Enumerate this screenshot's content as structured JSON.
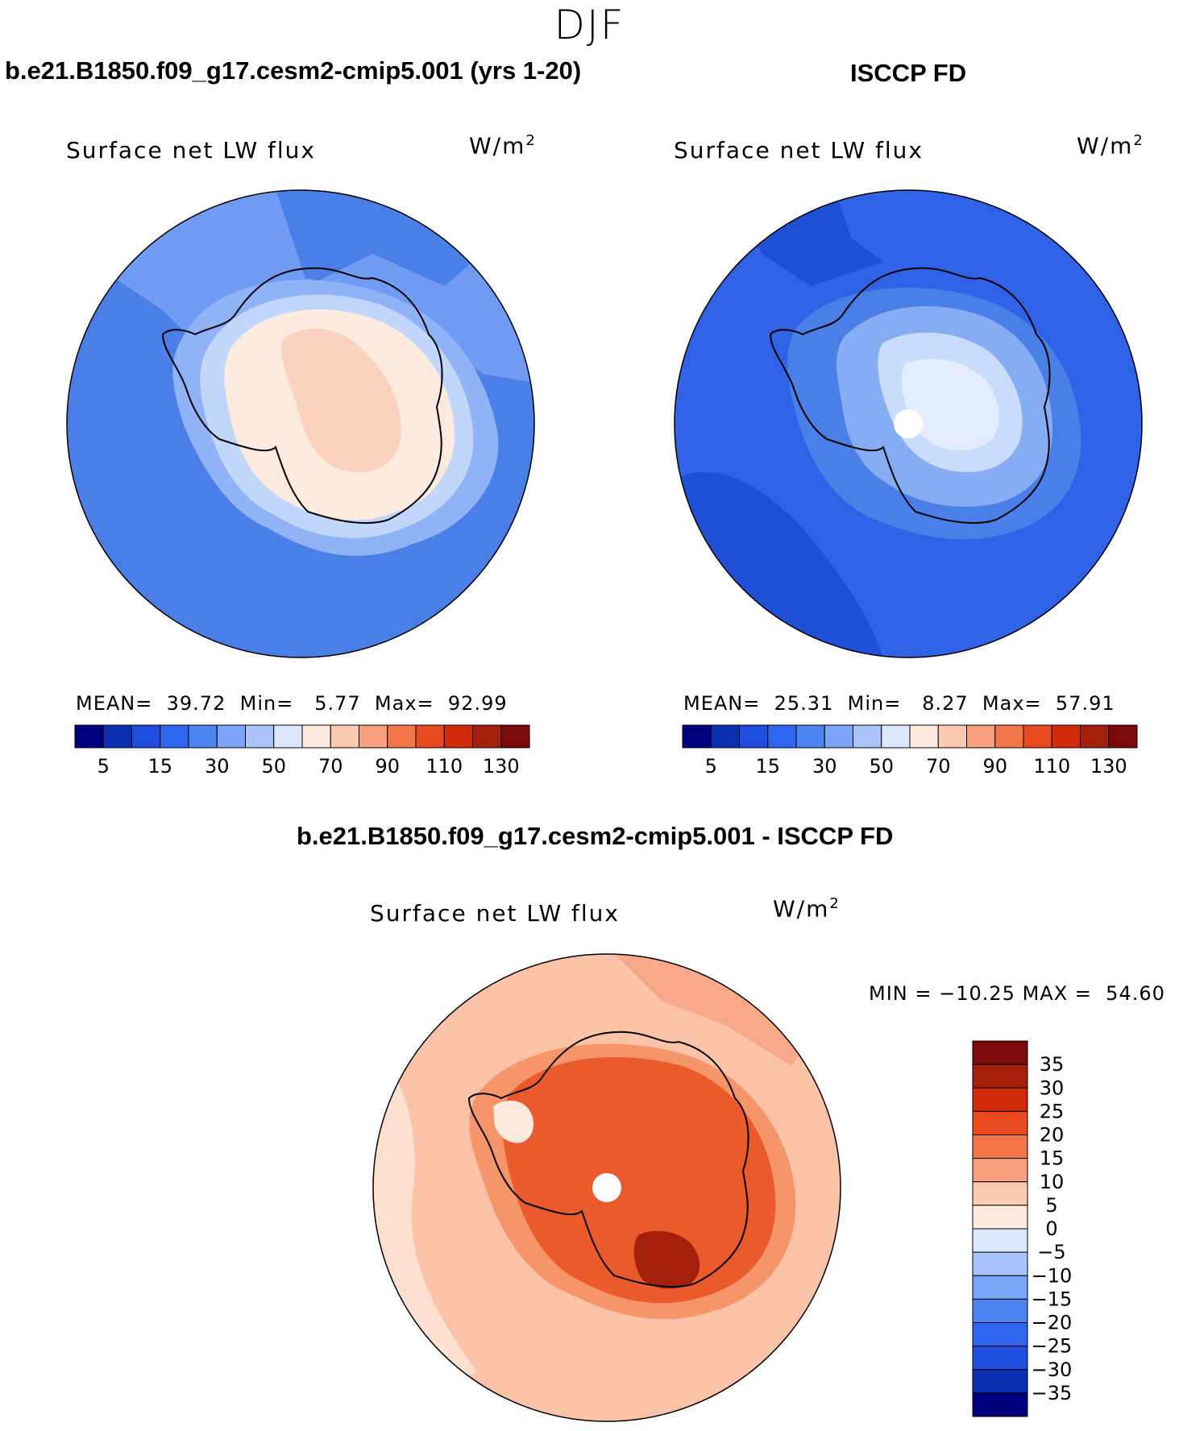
{
  "page": {
    "season_title": "DJF",
    "variable_title": "Surface net LW flux",
    "units_base": "W/m",
    "units_exp": "2"
  },
  "panels": [
    {
      "case_title": "b.e21.B1850.f09_g17.cesm2-cmip5.001 (yrs 1-20)",
      "stats": {
        "mean_label": "MEAN=",
        "mean": "39.72",
        "min_label": "Min=",
        "min": "5.77",
        "max_label": "Max=",
        "max": "92.99"
      }
    },
    {
      "case_title": "ISCCP FD",
      "stats": {
        "mean_label": "MEAN=",
        "mean": "25.31",
        "min_label": "Min=",
        "min": "8.27",
        "max_label": "Max=",
        "max": "57.91"
      }
    }
  ],
  "diff_panel": {
    "case_title": "b.e21.B1850.f09_g17.cesm2-cmip5.001 - ISCCP FD",
    "stats": {
      "min_label": "MIN =",
      "min": "−10.25",
      "max_label": "MAX =",
      "max": "54.60"
    }
  },
  "colors": {
    "abs_scale": [
      "#00007f",
      "#0a2fb0",
      "#1f4de0",
      "#2f66f0",
      "#4d84f2",
      "#7aa5f6",
      "#a9c4fa",
      "#dce9fc",
      "#fdeadf",
      "#fcc9b1",
      "#f9a17f",
      "#f47548",
      "#ea4a1f",
      "#d02a0a",
      "#a4200a",
      "#7c0a0a"
    ],
    "diff_scale": [
      "#00007f",
      "#0a2fb0",
      "#1f4de0",
      "#2f66f0",
      "#4d84f2",
      "#7aa5f6",
      "#a9c4fa",
      "#dce9fc",
      "#fdeadf",
      "#fcc9b1",
      "#f9a17f",
      "#f47548",
      "#ea4a1f",
      "#d02a0a",
      "#a4200a",
      "#7c0a0a"
    ],
    "ocean_model": "#4a7fe8",
    "ocean_obs": "#2f62e6",
    "ocean_diff": "#fac3a8"
  },
  "chart_data": [
    {
      "type": "contour-map",
      "title": "Surface net LW flux",
      "subtitle": "b.e21.B1850.f09_g17.cesm2-cmip5.001 (yrs 1-20)",
      "units": "W/m2",
      "levels": [
        5,
        10,
        15,
        20,
        30,
        40,
        50,
        60,
        70,
        80,
        90,
        100,
        110,
        120,
        130
      ],
      "colorbar_ticks": [
        "5",
        "15",
        "30",
        "50",
        "70",
        "90",
        "110",
        "130"
      ],
      "mean": 39.72,
      "min": 5.77,
      "max": 92.99
    },
    {
      "type": "contour-map",
      "title": "Surface net LW flux",
      "subtitle": "ISCCP FD",
      "units": "W/m2",
      "levels": [
        5,
        10,
        15,
        20,
        30,
        40,
        50,
        60,
        70,
        80,
        90,
        100,
        110,
        120,
        130
      ],
      "colorbar_ticks": [
        "5",
        "15",
        "30",
        "50",
        "70",
        "90",
        "110",
        "130"
      ],
      "mean": 25.31,
      "min": 8.27,
      "max": 57.91
    },
    {
      "type": "contour-map",
      "title": "Surface net LW flux",
      "subtitle": "b.e21.B1850.f09_g17.cesm2-cmip5.001 - ISCCP FD",
      "units": "W/m2",
      "levels": [
        -35,
        -30,
        -25,
        -20,
        -15,
        -10,
        -5,
        0,
        5,
        10,
        15,
        20,
        25,
        30,
        35
      ],
      "colorbar_ticks": [
        "35",
        "30",
        "25",
        "20",
        "15",
        "10",
        "5",
        "0",
        "−5",
        "−10",
        "−15",
        "−20",
        "−25",
        "−30",
        "−35"
      ],
      "min": -10.25,
      "max": 54.6
    }
  ]
}
